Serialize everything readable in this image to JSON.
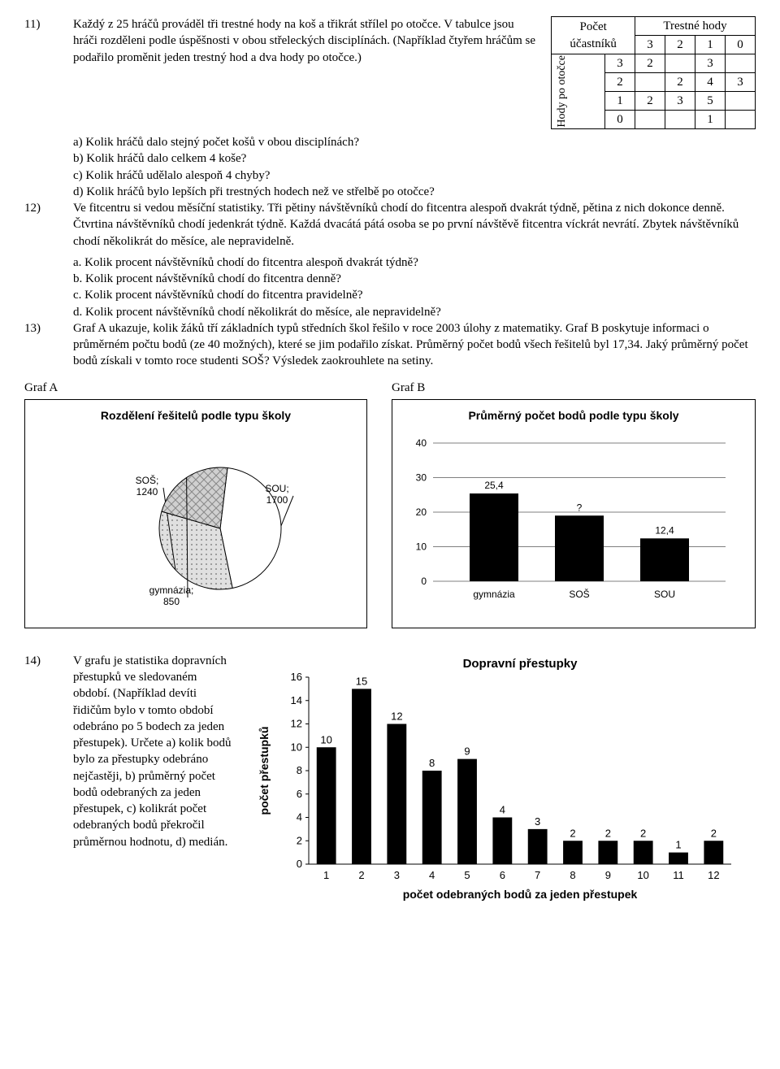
{
  "q11": {
    "num": "11)",
    "text": "Každý z 25 hráčů prováděl tři trestné hody na koš a třikrát střílel po otočce. V tabulce jsou hráči rozděleni podle úspěšnosti v obou střeleckých disciplínách. (Například čtyřem hráčům se podařilo proměnit jeden trestný hod a dva hody po otočce.)",
    "a": "a) Kolik hráčů dalo stejný počet košů v obou disciplínách?",
    "b": "b) Kolik hráčů dalo celkem 4 koše?",
    "c": "c) Kolik hráčů udělalo alespoň 4 chyby?",
    "d": "d) Kolik hráčů bylo lepších při trestných hodech než ve střelbě po otočce?",
    "table": {
      "top_label": "Počet účastníků",
      "right_header": "Trestné hody",
      "left_header": "Hody po otočce",
      "cols": [
        "3",
        "2",
        "1",
        "0"
      ],
      "rows": [
        {
          "h": "3",
          "c": [
            "2",
            "",
            "3",
            ""
          ]
        },
        {
          "h": "2",
          "c": [
            "",
            "2",
            "4",
            "3"
          ]
        },
        {
          "h": "1",
          "c": [
            "2",
            "3",
            "5",
            ""
          ]
        },
        {
          "h": "0",
          "c": [
            "",
            "",
            "1",
            ""
          ]
        }
      ]
    }
  },
  "q12": {
    "num": "12)",
    "text": "Ve fitcentru si vedou měsíční statistiky. Tři pětiny návštěvníků chodí do fitcentra alespoň dvakrát týdně, pětina z nich dokonce denně. Čtvrtina návštěvníků chodí jedenkrát týdně. Každá dvacátá pátá osoba se po první návštěvě fitcentra víckrát nevrátí. Zbytek návštěvníků chodí několikrát do měsíce, ale nepravidelně.",
    "a": "a. Kolik procent návštěvníků chodí do fitcentra alespoň dvakrát týdně?",
    "b": "b. Kolik procent návštěvníků chodí do fitcentra denně?",
    "c": "c. Kolik procent návštěvníků chodí do fitcentra pravidelně?",
    "d": "d. Kolik procent návštěvníků chodí několikrát do měsíce, ale nepravidelně?"
  },
  "q13": {
    "num": "13)",
    "text": "Graf A ukazuje, kolik žáků tří základních typů středních škol řešilo v roce 2003 úlohy z matematiky. Graf B poskytuje informaci o průměrném počtu bodů (ze 40 možných), které se jim podařilo získat. Průměrný počet bodů všech řešitelů byl 17,34. Jaký průměrný počet bodů získali v tomto roce studenti SOŠ? Výsledek zaokrouhlete na setiny.",
    "grafA_label": "Graf A",
    "grafB_label": "Graf B",
    "pie": {
      "title": "Rozdělení řešitelů podle typu školy",
      "slices": [
        {
          "label": "SOU;",
          "value": "1700",
          "fill": "#ffffff",
          "pattern": "none"
        },
        {
          "label": "SOŠ;",
          "value": "1240",
          "fill": "#d9d9d9",
          "pattern": "dots"
        },
        {
          "label": "gymnázia;",
          "value": "850",
          "fill": "#cfcfcf",
          "pattern": "diamond"
        }
      ]
    },
    "bar": {
      "title": "Průměrný počet bodů podle typu školy",
      "ymax": 40,
      "ytick": 10,
      "categories": [
        "gymnázia",
        "SOŠ",
        "SOU"
      ],
      "values": [
        25.4,
        19,
        12.4
      ],
      "labels": [
        "25,4",
        "?",
        "12,4"
      ],
      "color": "#000000",
      "grid_color": "#000000",
      "bg": "#ffffff"
    }
  },
  "q14": {
    "num": "14)",
    "text": "V grafu je statistika dopravních přestupků ve sledovaném období. (Například devíti řidičům bylo v tomto období odebráno po 5 bodech za jeden přestupek). Určete a) kolik bodů bylo za přestupky odebráno nejčastěji, b) průměrný počet bodů odebraných za jeden přestupek, c) kolikrát počet odebraných bodů překročil průměrnou hodnotu, d) medián.",
    "chart": {
      "title": "Dopravní přestupky",
      "ylabel": "počet přestupků",
      "xlabel": "počet odebraných bodů za jeden přestupek",
      "ymax": 16,
      "ytick": 2,
      "x": [
        "1",
        "2",
        "3",
        "4",
        "5",
        "6",
        "7",
        "8",
        "9",
        "10",
        "11",
        "12"
      ],
      "y": [
        10,
        15,
        12,
        8,
        9,
        4,
        3,
        2,
        2,
        2,
        1,
        2
      ],
      "color": "#000000"
    }
  }
}
